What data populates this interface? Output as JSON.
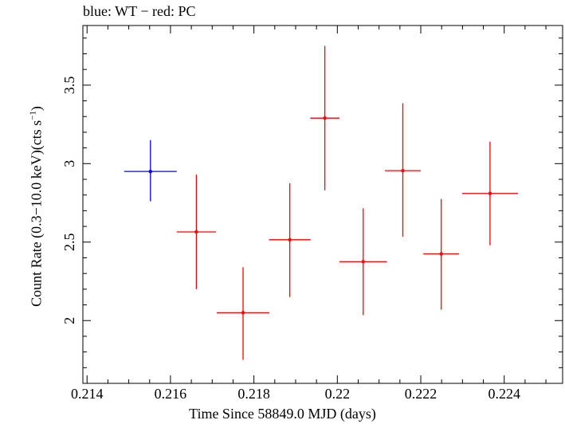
{
  "chart_data": {
    "type": "scatter",
    "title": "blue: WT − red: PC",
    "xlabel": "Time Since 58849.0 MJD (days)",
    "ylabel_parts": [
      "Count Rate (0.3−10.0 keV)(cts s",
      "−1",
      ")"
    ],
    "xlim": [
      0.2139,
      0.2254
    ],
    "ylim": [
      1.6,
      3.88
    ],
    "x_ticks": [
      0.214,
      0.216,
      0.218,
      0.22,
      0.222,
      0.224
    ],
    "x_tick_labels": [
      "0.214",
      "0.216",
      "0.218",
      "0.22",
      "0.222",
      "0.224"
    ],
    "y_ticks": [
      2,
      2.5,
      3,
      3.5
    ],
    "y_tick_labels": [
      "2",
      "2.5",
      "3",
      "3.5"
    ],
    "grid": false,
    "series": [
      {
        "name": "WT",
        "color": "#0000ff",
        "points": [
          {
            "x": 0.21552,
            "y": 2.95,
            "xerr": 0.00063,
            "yerr_lo": 0.19,
            "yerr_hi": 0.2
          }
        ]
      },
      {
        "name": "PC",
        "color": "#ff0000",
        "points": [
          {
            "x": 0.21662,
            "y": 2.565,
            "xerr": 0.00047,
            "yerr_lo": 0.365,
            "yerr_hi": 0.365
          },
          {
            "x": 0.21774,
            "y": 2.05,
            "xerr": 0.00063,
            "yerr_lo": 0.3,
            "yerr_hi": 0.29
          },
          {
            "x": 0.21886,
            "y": 2.515,
            "xerr": 0.0005,
            "yerr_lo": 0.365,
            "yerr_hi": 0.36
          },
          {
            "x": 0.2197,
            "y": 3.29,
            "xerr": 0.00035,
            "yerr_lo": 0.46,
            "yerr_hi": 0.46
          },
          {
            "x": 0.22062,
            "y": 2.375,
            "xerr": 0.00057,
            "yerr_lo": 0.34,
            "yerr_hi": 0.34
          },
          {
            "x": 0.22157,
            "y": 2.955,
            "xerr": 0.00043,
            "yerr_lo": 0.42,
            "yerr_hi": 0.43
          },
          {
            "x": 0.22249,
            "y": 2.425,
            "xerr": 0.00043,
            "yerr_lo": 0.355,
            "yerr_hi": 0.35
          },
          {
            "x": 0.22366,
            "y": 2.81,
            "xerr": 0.00067,
            "yerr_lo": 0.33,
            "yerr_hi": 0.33
          }
        ]
      }
    ]
  }
}
